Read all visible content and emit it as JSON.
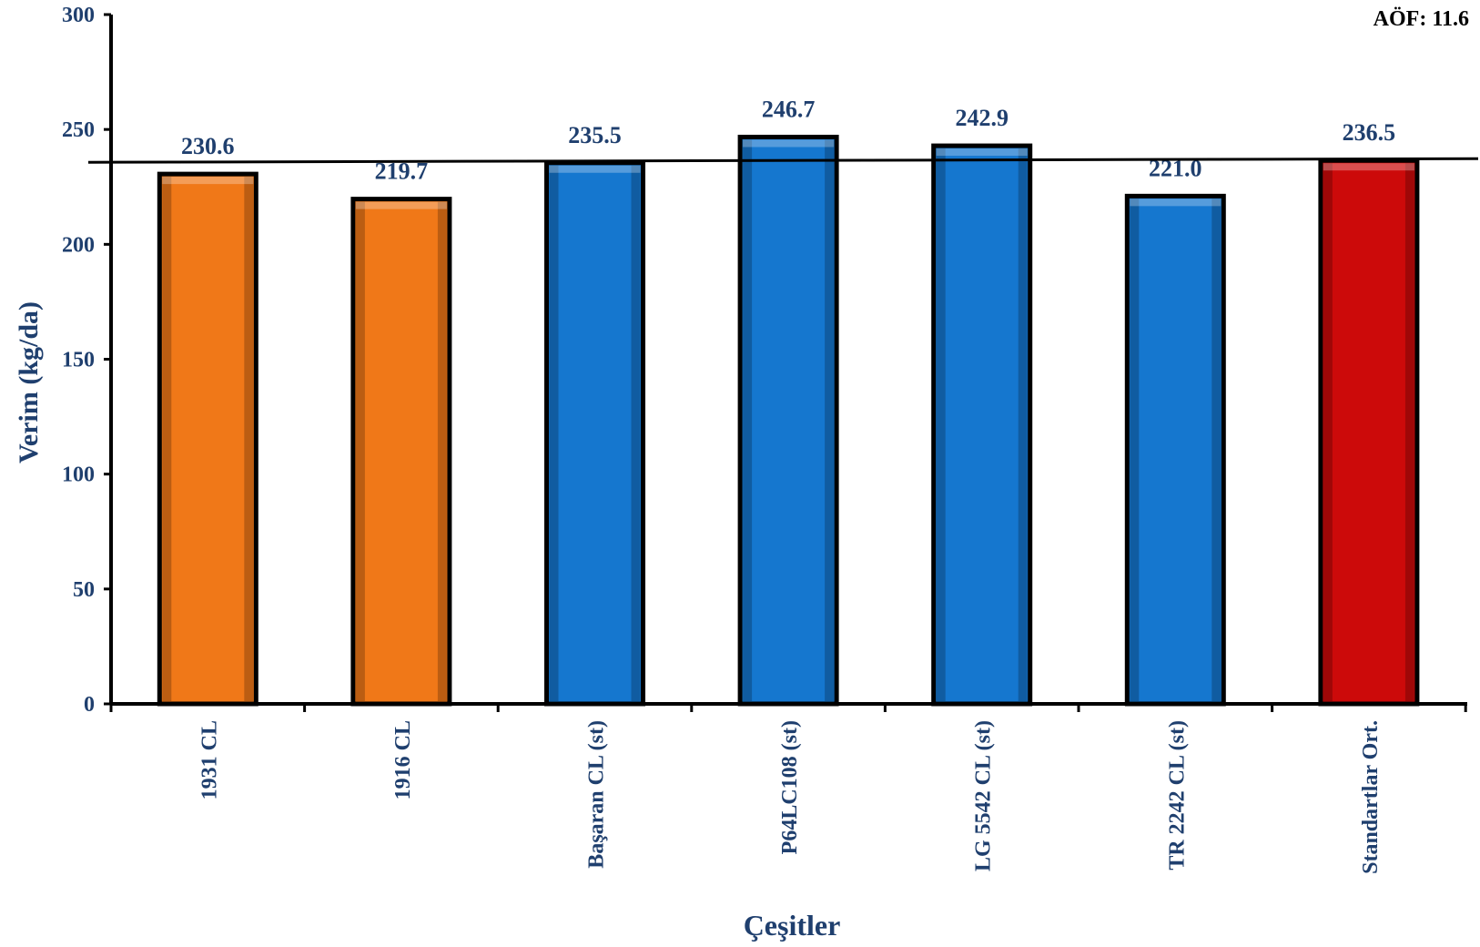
{
  "chart_data": {
    "type": "bar",
    "title": "",
    "xlabel": "Çeşitler",
    "ylabel": "Verim (kg/da)",
    "ylim": [
      0,
      300
    ],
    "yticks": [
      0,
      50,
      100,
      150,
      200,
      250,
      300
    ],
    "categories": [
      "1931 CL",
      "1916 CL",
      "Başaran CL (st)",
      "P64LC108 (st)",
      "LG 5542 CL (st)",
      "TR 2242 CL (st)",
      "Standartlar Ort."
    ],
    "values": [
      230.6,
      219.7,
      235.5,
      246.7,
      242.9,
      221.0,
      236.5
    ],
    "value_labels": [
      "230.6",
      "219.7",
      "235.5",
      "246.7",
      "242.9",
      "221.0",
      "236.5"
    ],
    "bar_colors": [
      "#f07818",
      "#f07818",
      "#1577cf",
      "#1577cf",
      "#1577cf",
      "#1577cf",
      "#cc0a0a"
    ],
    "reference_line": 236.5,
    "annotation": "AÖF: 11.6",
    "grid": false,
    "legend": "none"
  },
  "colors": {
    "text_blue": "#1f3f6e",
    "axis": "#000000"
  }
}
